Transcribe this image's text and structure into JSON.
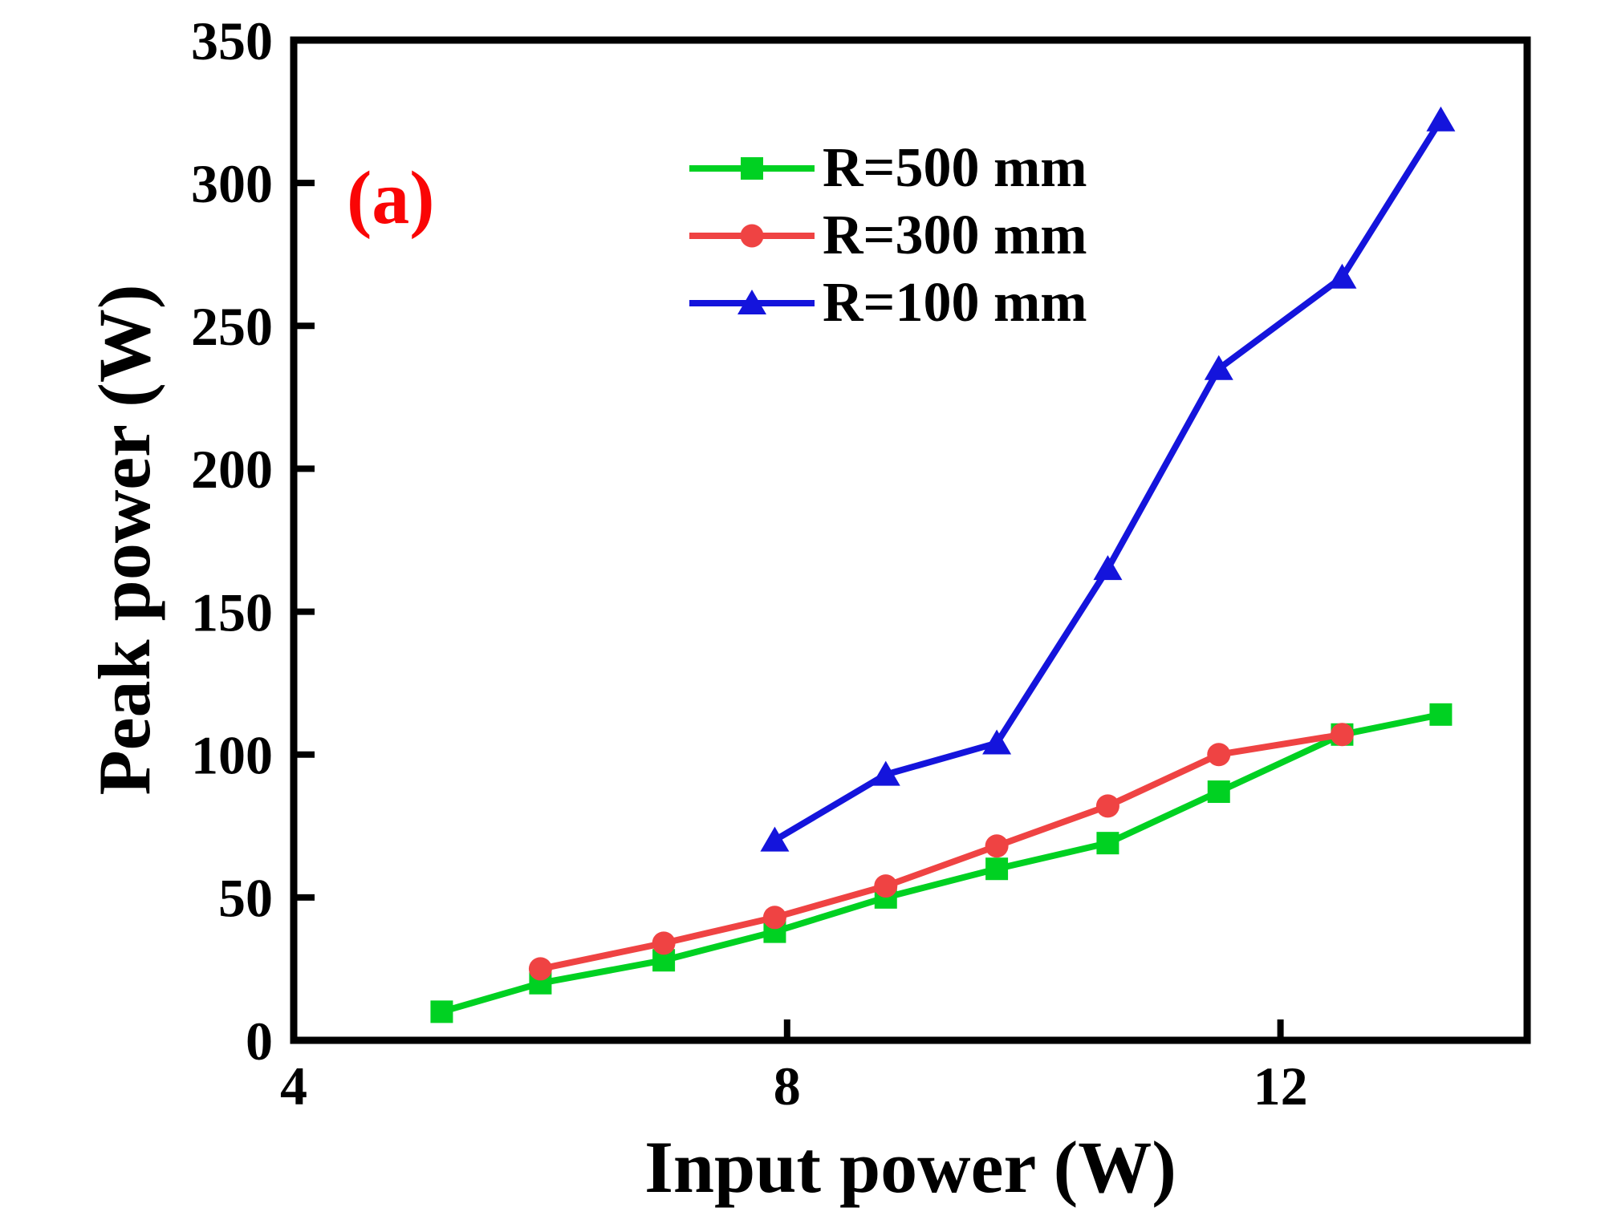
{
  "panel_label": "(a)",
  "colors": {
    "panel_label": "#fa0505",
    "axis": "#000000",
    "series_green": "#00d122",
    "series_red": "#ef4343",
    "series_blue": "#1414dc"
  },
  "axes": {
    "x_title": "Input power (W)",
    "y_title": "Peak power (W)",
    "x_ticks": [
      4,
      8,
      12
    ],
    "y_ticks": [
      0,
      50,
      100,
      150,
      200,
      250,
      300,
      350
    ]
  },
  "legend": [
    {
      "label": "R=500 mm",
      "marker": "square",
      "color": "#00d122"
    },
    {
      "label": "R=300 mm",
      "marker": "circle",
      "color": "#ef4343"
    },
    {
      "label": "R=100 mm",
      "marker": "triangle",
      "color": "#1414dc"
    }
  ],
  "chart_data": {
    "type": "line",
    "title": "",
    "xlabel": "Input power (W)",
    "ylabel": "Peak power (W)",
    "xlim": [
      4,
      14
    ],
    "ylim": [
      0,
      350
    ],
    "grid": false,
    "legend_position": "upper center-left inside",
    "series": [
      {
        "name": "R=500 mm",
        "color": "#00d122",
        "marker": "square",
        "x": [
          5.2,
          6.0,
          7.0,
          7.9,
          8.8,
          9.7,
          10.6,
          11.5,
          12.5,
          13.3
        ],
        "y": [
          10,
          20,
          28,
          38,
          50,
          60,
          69,
          87,
          107,
          114
        ]
      },
      {
        "name": "R=300 mm",
        "color": "#ef4343",
        "marker": "circle",
        "x": [
          6.0,
          7.0,
          7.9,
          8.8,
          9.7,
          10.6,
          11.5,
          12.5
        ],
        "y": [
          25,
          34,
          43,
          54,
          68,
          82,
          100,
          107
        ]
      },
      {
        "name": "R=100 mm",
        "color": "#1414dc",
        "marker": "triangle",
        "x": [
          7.9,
          8.8,
          9.7,
          10.6,
          11.5,
          12.5,
          13.3
        ],
        "y": [
          70,
          93,
          104,
          165,
          235,
          267,
          322
        ]
      }
    ]
  }
}
